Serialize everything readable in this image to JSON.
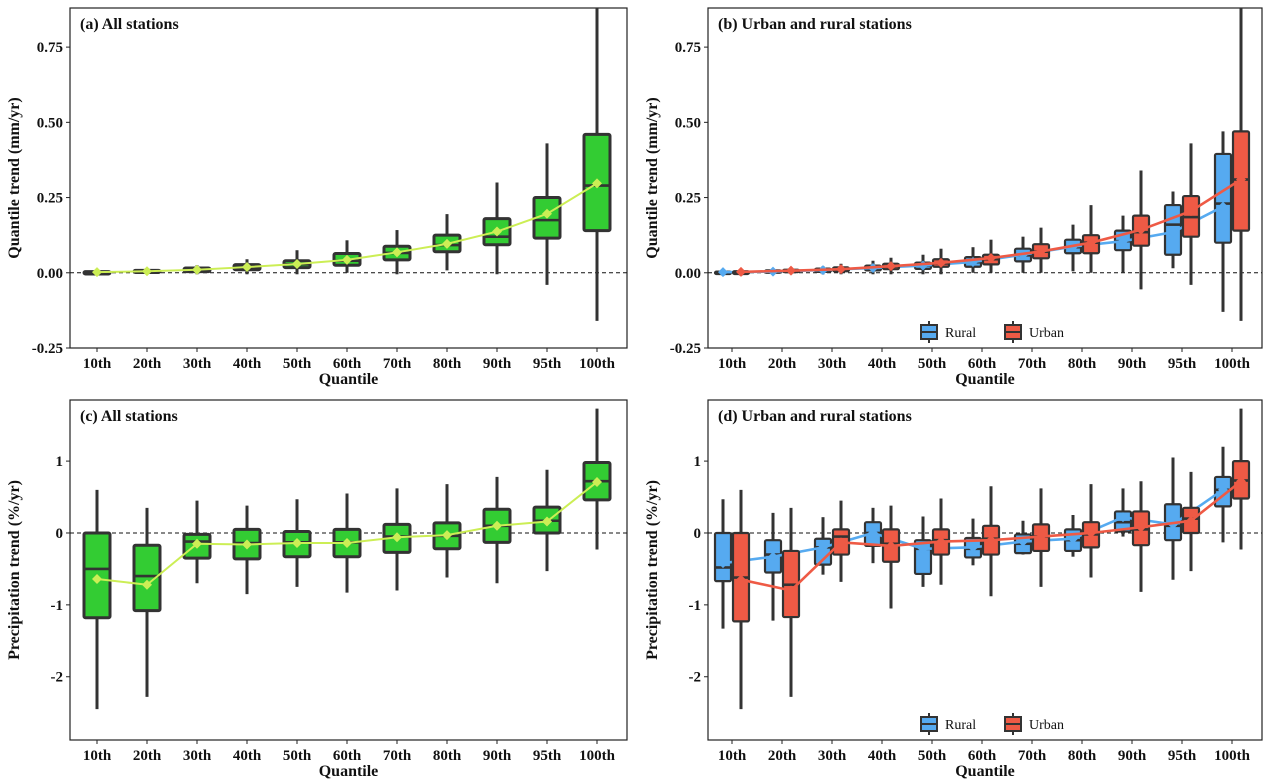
{
  "figure": {
    "colors": {
      "all_box": "#33cc33",
      "all_line": "#ccee55",
      "rural": "#56aaf0",
      "urban": "#ee5a45",
      "outline": "#333333"
    },
    "legend": {
      "rural": "Rural",
      "urban": "Urban"
    }
  },
  "chart_data": [
    {
      "id": "a",
      "type": "boxplot",
      "title": "(a) All stations",
      "xlabel": "Quantile",
      "ylabel": "Quantile trend (mm/yr)",
      "categories": [
        "10th",
        "20th",
        "30th",
        "40th",
        "50th",
        "60th",
        "70th",
        "80th",
        "90th",
        "95th",
        "100th"
      ],
      "ylim": [
        -0.25,
        0.88
      ],
      "yticks": [
        -0.25,
        0.0,
        0.25,
        0.5,
        0.75
      ],
      "ytick_labels": [
        "-0.25",
        "0.00",
        "0.25",
        "0.50",
        "0.75"
      ],
      "reference_line": 0,
      "series": [
        {
          "name": "All",
          "color_key": "all_box",
          "line_color_key": "all_line",
          "boxes": [
            {
              "min": -0.01,
              "q1": -0.004,
              "median": 0.0,
              "q3": 0.004,
              "max": 0.01
            },
            {
              "min": -0.005,
              "q1": 0.001,
              "median": 0.004,
              "q3": 0.008,
              "max": 0.015
            },
            {
              "min": -0.005,
              "q1": 0.004,
              "median": 0.01,
              "q3": 0.016,
              "max": 0.025
            },
            {
              "min": -0.005,
              "q1": 0.01,
              "median": 0.018,
              "q3": 0.027,
              "max": 0.045
            },
            {
              "min": -0.005,
              "q1": 0.017,
              "median": 0.028,
              "q3": 0.04,
              "max": 0.075
            },
            {
              "min": 0.0,
              "q1": 0.025,
              "median": 0.04,
              "q3": 0.064,
              "max": 0.108
            },
            {
              "min": -0.005,
              "q1": 0.043,
              "median": 0.066,
              "q3": 0.088,
              "max": 0.142
            },
            {
              "min": 0.008,
              "q1": 0.07,
              "median": 0.092,
              "q3": 0.125,
              "max": 0.195
            },
            {
              "min": -0.005,
              "q1": 0.093,
              "median": 0.12,
              "q3": 0.18,
              "max": 0.3
            },
            {
              "min": -0.04,
              "q1": 0.115,
              "median": 0.175,
              "q3": 0.25,
              "max": 0.43
            },
            {
              "min": -0.16,
              "q1": 0.14,
              "median": 0.29,
              "q3": 0.46,
              "max": 0.88
            }
          ],
          "means": [
            0.002,
            0.005,
            0.01,
            0.019,
            0.029,
            0.043,
            0.068,
            0.096,
            0.137,
            0.196,
            0.297
          ]
        }
      ]
    },
    {
      "id": "b",
      "type": "boxplot",
      "title": "(b) Urban and rural stations",
      "xlabel": "Quantile",
      "ylabel": "Quantile trend (mm/yr)",
      "categories": [
        "10th",
        "20th",
        "30th",
        "40th",
        "50th",
        "60th",
        "70th",
        "80th",
        "90th",
        "95th",
        "100th"
      ],
      "ylim": [
        -0.25,
        0.88
      ],
      "yticks": [
        -0.25,
        0.0,
        0.25,
        0.5,
        0.75
      ],
      "ytick_labels": [
        "-0.25",
        "0.00",
        "0.25",
        "0.50",
        "0.75"
      ],
      "reference_line": 0,
      "legend_position": "bottom-center",
      "series": [
        {
          "name": "Rural",
          "color_key": "rural",
          "boxes": [
            {
              "min": -0.01,
              "q1": -0.004,
              "median": 0.0,
              "q3": 0.004,
              "max": 0.01
            },
            {
              "min": -0.005,
              "q1": 0.0,
              "median": 0.004,
              "q3": 0.008,
              "max": 0.014
            },
            {
              "min": -0.005,
              "q1": 0.003,
              "median": 0.009,
              "q3": 0.014,
              "max": 0.022
            },
            {
              "min": -0.005,
              "q1": 0.008,
              "median": 0.016,
              "q3": 0.024,
              "max": 0.04
            },
            {
              "min": -0.005,
              "q1": 0.013,
              "median": 0.024,
              "q3": 0.034,
              "max": 0.06
            },
            {
              "min": 0.0,
              "q1": 0.02,
              "median": 0.035,
              "q3": 0.052,
              "max": 0.085
            },
            {
              "min": 0.0,
              "q1": 0.038,
              "median": 0.058,
              "q3": 0.08,
              "max": 0.12
            },
            {
              "min": 0.005,
              "q1": 0.065,
              "median": 0.085,
              "q3": 0.11,
              "max": 0.16
            },
            {
              "min": 0.0,
              "q1": 0.075,
              "median": 0.105,
              "q3": 0.14,
              "max": 0.19
            },
            {
              "min": 0.015,
              "q1": 0.06,
              "median": 0.16,
              "q3": 0.225,
              "max": 0.27
            },
            {
              "min": -0.13,
              "q1": 0.1,
              "median": 0.23,
              "q3": 0.395,
              "max": 0.47
            }
          ],
          "means": [
            0.002,
            0.004,
            0.009,
            0.016,
            0.024,
            0.036,
            0.06,
            0.087,
            0.105,
            0.135,
            0.22
          ]
        },
        {
          "name": "Urban",
          "color_key": "urban",
          "boxes": [
            {
              "min": -0.01,
              "q1": -0.004,
              "median": 0.0,
              "q3": 0.005,
              "max": 0.012
            },
            {
              "min": -0.005,
              "q1": 0.002,
              "median": 0.006,
              "q3": 0.01,
              "max": 0.018
            },
            {
              "min": -0.005,
              "q1": 0.005,
              "median": 0.011,
              "q3": 0.018,
              "max": 0.03
            },
            {
              "min": -0.005,
              "q1": 0.012,
              "median": 0.021,
              "q3": 0.03,
              "max": 0.05
            },
            {
              "min": -0.005,
              "q1": 0.02,
              "median": 0.031,
              "q3": 0.045,
              "max": 0.08
            },
            {
              "min": 0.0,
              "q1": 0.028,
              "median": 0.045,
              "q3": 0.06,
              "max": 0.11
            },
            {
              "min": 0.0,
              "q1": 0.048,
              "median": 0.07,
              "q3": 0.095,
              "max": 0.15
            },
            {
              "min": 0.0,
              "q1": 0.065,
              "median": 0.1,
              "q3": 0.125,
              "max": 0.225
            },
            {
              "min": -0.055,
              "q1": 0.09,
              "median": 0.135,
              "q3": 0.19,
              "max": 0.34
            },
            {
              "min": -0.04,
              "q1": 0.12,
              "median": 0.185,
              "q3": 0.255,
              "max": 0.43
            },
            {
              "min": -0.16,
              "q1": 0.14,
              "median": 0.31,
              "q3": 0.47,
              "max": 0.88
            }
          ],
          "means": [
            0.003,
            0.007,
            0.012,
            0.022,
            0.033,
            0.049,
            0.071,
            0.1,
            0.143,
            0.205,
            0.31
          ]
        }
      ]
    },
    {
      "id": "c",
      "type": "boxplot",
      "title": "(c) All stations",
      "xlabel": "Quantile",
      "ylabel": "Precipitation trend (%/yr)",
      "categories": [
        "10th",
        "20th",
        "30th",
        "40th",
        "50th",
        "60th",
        "70th",
        "80th",
        "90th",
        "95th",
        "100th"
      ],
      "ylim": [
        -2.88,
        1.85
      ],
      "yticks": [
        -2,
        -1,
        0,
        1
      ],
      "ytick_labels": [
        "-2",
        "-1",
        "0",
        "1"
      ],
      "reference_line": 0,
      "series": [
        {
          "name": "All",
          "color_key": "all_box",
          "line_color_key": "all_line",
          "boxes": [
            {
              "min": -2.45,
              "q1": -1.18,
              "median": -0.5,
              "q3": 0.0,
              "max": 0.6
            },
            {
              "min": -2.28,
              "q1": -1.08,
              "median": -0.6,
              "q3": -0.17,
              "max": 0.35
            },
            {
              "min": -0.7,
              "q1": -0.35,
              "median": -0.12,
              "q3": -0.02,
              "max": 0.45
            },
            {
              "min": -0.85,
              "q1": -0.36,
              "median": -0.14,
              "q3": 0.05,
              "max": 0.38
            },
            {
              "min": -0.75,
              "q1": -0.33,
              "median": -0.13,
              "q3": 0.02,
              "max": 0.47
            },
            {
              "min": -0.83,
              "q1": -0.33,
              "median": -0.13,
              "q3": 0.05,
              "max": 0.55
            },
            {
              "min": -0.8,
              "q1": -0.27,
              "median": -0.05,
              "q3": 0.12,
              "max": 0.62
            },
            {
              "min": -0.62,
              "q1": -0.22,
              "median": -0.04,
              "q3": 0.14,
              "max": 0.68
            },
            {
              "min": -0.7,
              "q1": -0.13,
              "median": 0.1,
              "q3": 0.33,
              "max": 0.78
            },
            {
              "min": -0.53,
              "q1": 0.0,
              "median": 0.17,
              "q3": 0.36,
              "max": 0.88
            },
            {
              "min": -0.23,
              "q1": 0.46,
              "median": 0.72,
              "q3": 0.98,
              "max": 1.73
            }
          ],
          "means": [
            -0.64,
            -0.72,
            -0.15,
            -0.16,
            -0.14,
            -0.14,
            -0.06,
            -0.03,
            0.1,
            0.16,
            0.71
          ]
        }
      ]
    },
    {
      "id": "d",
      "type": "boxplot",
      "title": "(d) Urban and rural stations",
      "xlabel": "Quantile",
      "ylabel": "Precipitation trend (%/yr)",
      "categories": [
        "10th",
        "20th",
        "30th",
        "40th",
        "50th",
        "60th",
        "70th",
        "80th",
        "90th",
        "95th",
        "100th"
      ],
      "ylim": [
        -2.88,
        1.85
      ],
      "yticks": [
        -2,
        -1,
        0,
        1
      ],
      "ytick_labels": [
        "-2",
        "-1",
        "0",
        "1"
      ],
      "reference_line": 0,
      "legend_position": "bottom-center",
      "series": [
        {
          "name": "Rural",
          "color_key": "rural",
          "boxes": [
            {
              "min": -1.33,
              "q1": -0.67,
              "median": -0.48,
              "q3": 0.0,
              "max": 0.47
            },
            {
              "min": -1.22,
              "q1": -0.55,
              "median": -0.3,
              "q3": -0.1,
              "max": 0.28
            },
            {
              "min": -0.58,
              "q1": -0.44,
              "median": -0.2,
              "q3": -0.08,
              "max": 0.22
            },
            {
              "min": -0.42,
              "q1": -0.18,
              "median": 0.0,
              "q3": 0.15,
              "max": 0.35
            },
            {
              "min": -0.75,
              "q1": -0.57,
              "median": -0.22,
              "q3": -0.1,
              "max": 0.23
            },
            {
              "min": -0.45,
              "q1": -0.34,
              "median": -0.22,
              "q3": -0.07,
              "max": 0.2
            },
            {
              "min": -0.3,
              "q1": -0.28,
              "median": -0.15,
              "q3": -0.02,
              "max": 0.17
            },
            {
              "min": -0.33,
              "q1": -0.25,
              "median": -0.1,
              "q3": 0.05,
              "max": 0.25
            },
            {
              "min": -0.05,
              "q1": 0.02,
              "median": 0.15,
              "q3": 0.3,
              "max": 0.62
            },
            {
              "min": -0.65,
              "q1": -0.1,
              "median": 0.1,
              "q3": 0.4,
              "max": 1.05
            },
            {
              "min": -0.13,
              "q1": 0.37,
              "median": 0.6,
              "q3": 0.78,
              "max": 1.2
            }
          ],
          "means": [
            -0.42,
            -0.33,
            -0.2,
            0.0,
            -0.22,
            -0.2,
            -0.12,
            -0.08,
            0.22,
            0.12,
            0.6
          ]
        },
        {
          "name": "Urban",
          "color_key": "urban",
          "boxes": [
            {
              "min": -2.45,
              "q1": -1.23,
              "median": -0.62,
              "q3": 0.0,
              "max": 0.6
            },
            {
              "min": -2.28,
              "q1": -1.17,
              "median": -0.72,
              "q3": -0.25,
              "max": 0.35
            },
            {
              "min": -0.68,
              "q1": -0.3,
              "median": -0.05,
              "q3": 0.05,
              "max": 0.45
            },
            {
              "min": -1.05,
              "q1": -0.4,
              "median": -0.15,
              "q3": 0.05,
              "max": 0.38
            },
            {
              "min": -0.72,
              "q1": -0.3,
              "median": -0.1,
              "q3": 0.05,
              "max": 0.48
            },
            {
              "min": -0.88,
              "q1": -0.3,
              "median": -0.08,
              "q3": 0.1,
              "max": 0.65
            },
            {
              "min": -0.75,
              "q1": -0.25,
              "median": -0.05,
              "q3": 0.12,
              "max": 0.62
            },
            {
              "min": -0.62,
              "q1": -0.2,
              "median": -0.02,
              "q3": 0.15,
              "max": 0.68
            },
            {
              "min": -0.82,
              "q1": -0.17,
              "median": 0.05,
              "q3": 0.3,
              "max": 0.72
            },
            {
              "min": -0.53,
              "q1": 0.0,
              "median": 0.2,
              "q3": 0.35,
              "max": 0.85
            },
            {
              "min": -0.23,
              "q1": 0.48,
              "median": 0.73,
              "q3": 1.0,
              "max": 1.73
            }
          ],
          "means": [
            -0.65,
            -0.8,
            -0.13,
            -0.18,
            -0.12,
            -0.1,
            -0.05,
            0.0,
            0.08,
            0.17,
            0.72
          ]
        }
      ]
    }
  ]
}
